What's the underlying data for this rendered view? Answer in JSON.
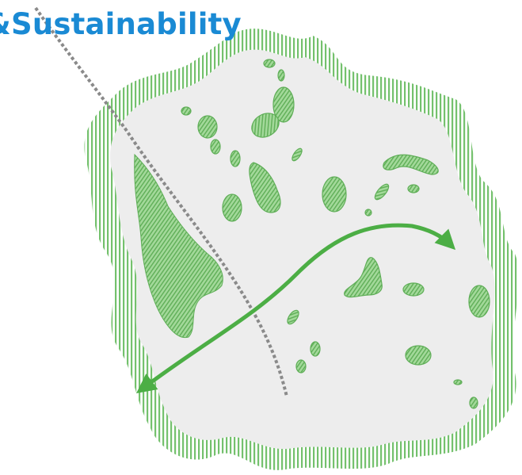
{
  "header": {
    "title_fragment": "&",
    "title": "Sustainability"
  },
  "colors": {
    "title": "#1a8ad4",
    "hatch": "#74c16d",
    "patch_fill": "#8fcf86",
    "patch_stroke": "#5fae57",
    "land": "#ededed",
    "corridor_arrow": "#4cae45",
    "boundary_line": "#8a8a8a"
  }
}
